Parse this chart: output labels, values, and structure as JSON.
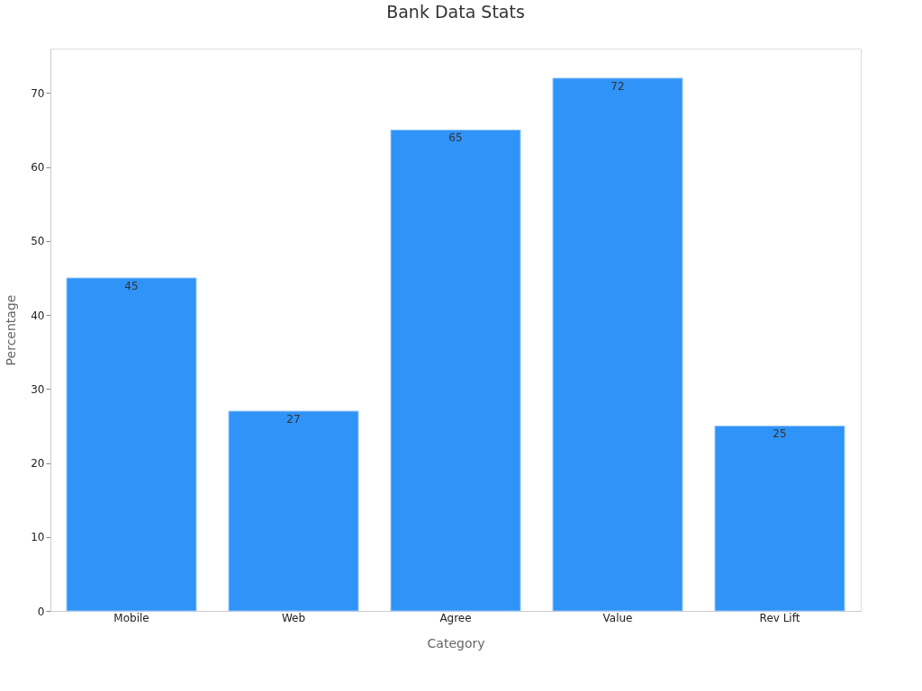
{
  "chart_data": {
    "type": "bar",
    "title": "Bank Data Stats",
    "xlabel": "Category",
    "ylabel": "Percentage",
    "categories": [
      "Mobile",
      "Web",
      "Agree",
      "Value",
      "Rev Lift"
    ],
    "values": [
      45,
      27,
      65,
      72,
      25
    ],
    "color": "#2f93f8",
    "ylim": [
      0,
      76
    ],
    "yticks": [
      0,
      10,
      20,
      30,
      40,
      50,
      60,
      70
    ],
    "grid": false,
    "data_labels": true
  }
}
